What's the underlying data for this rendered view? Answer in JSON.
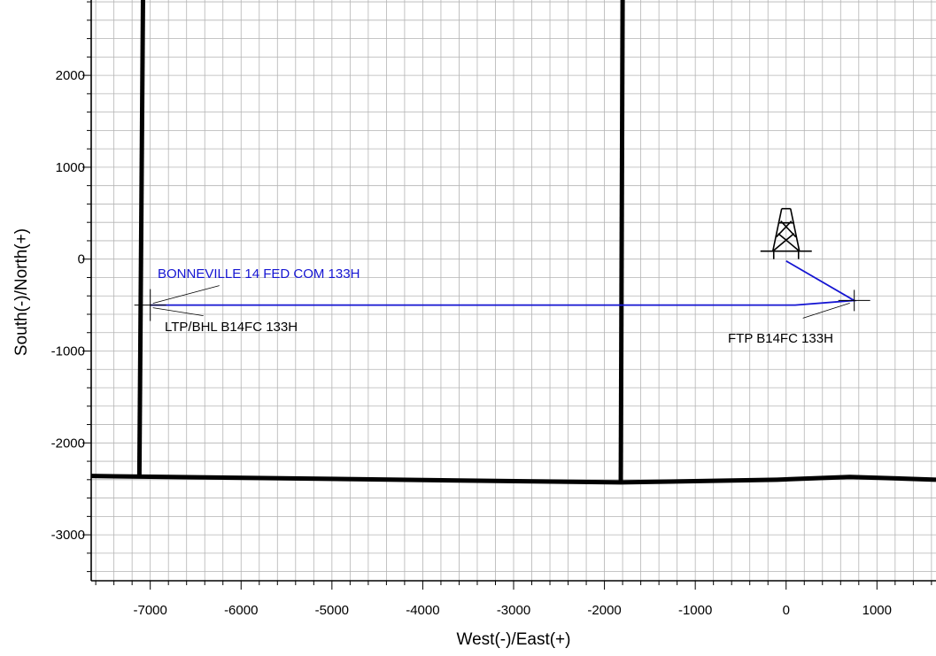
{
  "chart_data": {
    "type": "line",
    "title": "",
    "xlabel": "West(-)/East(+)",
    "ylabel": "South(-)/North(+)",
    "xlim": [
      -7650,
      1650
    ],
    "ylim": [
      -3500,
      2820
    ],
    "x_ticks": [
      -7000,
      -6000,
      -5000,
      -4000,
      -3000,
      -2000,
      -1000,
      0,
      1000
    ],
    "y_ticks": [
      -3000,
      -2000,
      -1000,
      0,
      1000,
      2000
    ],
    "x_tick_labels": [
      "-7000",
      "-6000",
      "-5000",
      "-4000",
      "-3000",
      "-2000",
      "-1000",
      "0",
      "1000"
    ],
    "y_tick_labels": [
      "-3000",
      "-2000",
      "-1000",
      "0",
      "1000",
      "2000"
    ],
    "grid": true,
    "grid_minor_step": 200,
    "colors": {
      "lease_lines": "#000000",
      "wellpath": "#1414d2",
      "grid": "#b4b4b4"
    },
    "lease_lines": [
      {
        "name": "",
        "x": [
          -7120,
          -7080
        ],
        "y": [
          -2370,
          2820
        ]
      },
      {
        "name": "",
        "x": [
          -1820,
          -1800
        ],
        "y": [
          -2430,
          2820
        ]
      },
      {
        "name": "",
        "x": [
          -7650,
          -1820,
          -100,
          700,
          1650
        ],
        "y": [
          -2360,
          -2430,
          -2400,
          -2370,
          -2400
        ]
      }
    ],
    "series": [
      {
        "name": "",
        "x": [
          0,
          750,
          100,
          -1820,
          -7000
        ],
        "y": [
          -20,
          -450,
          -500,
          -500,
          -500
        ]
      }
    ],
    "markers": [
      {
        "label": "BONNEVILLE 14 FED COM 133H",
        "symbol": "drilling-rig-icon",
        "x": 0,
        "y": 0
      },
      {
        "label": "FTP B14FC 133H",
        "symbol": "crosshair",
        "x": 750,
        "y": -450
      },
      {
        "label": "LTP/BHL B14FC 133H",
        "symbol": "crosshair",
        "x": -7000,
        "y": -500
      }
    ]
  }
}
